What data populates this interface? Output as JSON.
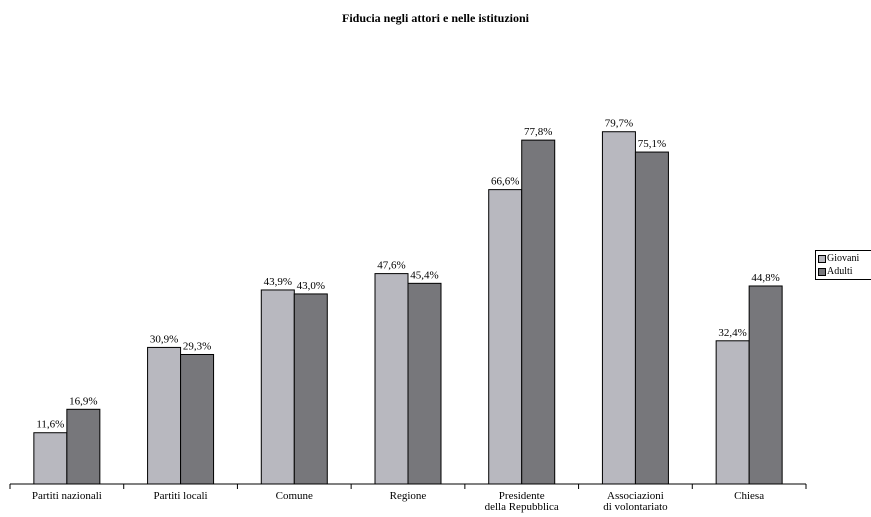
{
  "chart_data": {
    "type": "bar",
    "title": "Fiducia negli attori e nelle istituzioni",
    "categories": [
      "Partiti nazionali",
      "Partiti locali",
      "Comune",
      "Regione",
      "Presidente della Repubblica",
      "Associazioni di volontariato",
      "Chiesa"
    ],
    "series": [
      {
        "name": "Giovani",
        "values": [
          11.6,
          30.9,
          43.9,
          47.6,
          66.6,
          79.7,
          32.4
        ],
        "labels": [
          "11,6%",
          "30,9%",
          "43,9%",
          "47,6%",
          "66,6%",
          "79,7%",
          "32,4%"
        ],
        "color": "#b8b8bf"
      },
      {
        "name": "Adulti",
        "values": [
          16.9,
          29.3,
          43.0,
          45.4,
          77.8,
          75.1,
          44.8
        ],
        "labels": [
          "16,9%",
          "29,3%",
          "43,0%",
          "45,4%",
          "77,8%",
          "75,1%",
          "44,8%"
        ],
        "color": "#77777b"
      }
    ],
    "ylim": [
      0,
      100
    ],
    "grid": false,
    "legend_position": "right"
  }
}
